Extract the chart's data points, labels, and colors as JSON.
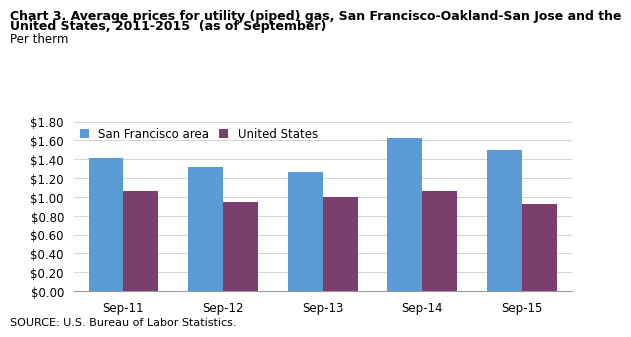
{
  "title_line1": "Chart 3. Average prices for utility (piped) gas, San Francisco-Oakland-San Jose and the",
  "title_line2": "United States, 2011-2015  (as of September)",
  "ylabel": "Per therm",
  "source": "SOURCE: U.S. Bureau of Labor Statistics.",
  "categories": [
    "Sep-11",
    "Sep-12",
    "Sep-13",
    "Sep-14",
    "Sep-15"
  ],
  "sf_values": [
    1.41,
    1.32,
    1.27,
    1.63,
    1.5
  ],
  "us_values": [
    1.06,
    0.95,
    1.0,
    1.06,
    0.93
  ],
  "sf_color": "#5B9BD5",
  "us_color": "#7B3F6E",
  "sf_label": "San Francisco area",
  "us_label": "United States",
  "ylim": [
    0,
    1.8
  ],
  "yticks": [
    0.0,
    0.2,
    0.4,
    0.6,
    0.8,
    1.0,
    1.2,
    1.4,
    1.6,
    1.8
  ],
  "bar_width": 0.35,
  "title_fontsize": 9,
  "axis_fontsize": 8.5,
  "legend_fontsize": 8.5,
  "tick_fontsize": 8.5,
  "source_fontsize": 8,
  "bg_color": "#FFFFFF"
}
